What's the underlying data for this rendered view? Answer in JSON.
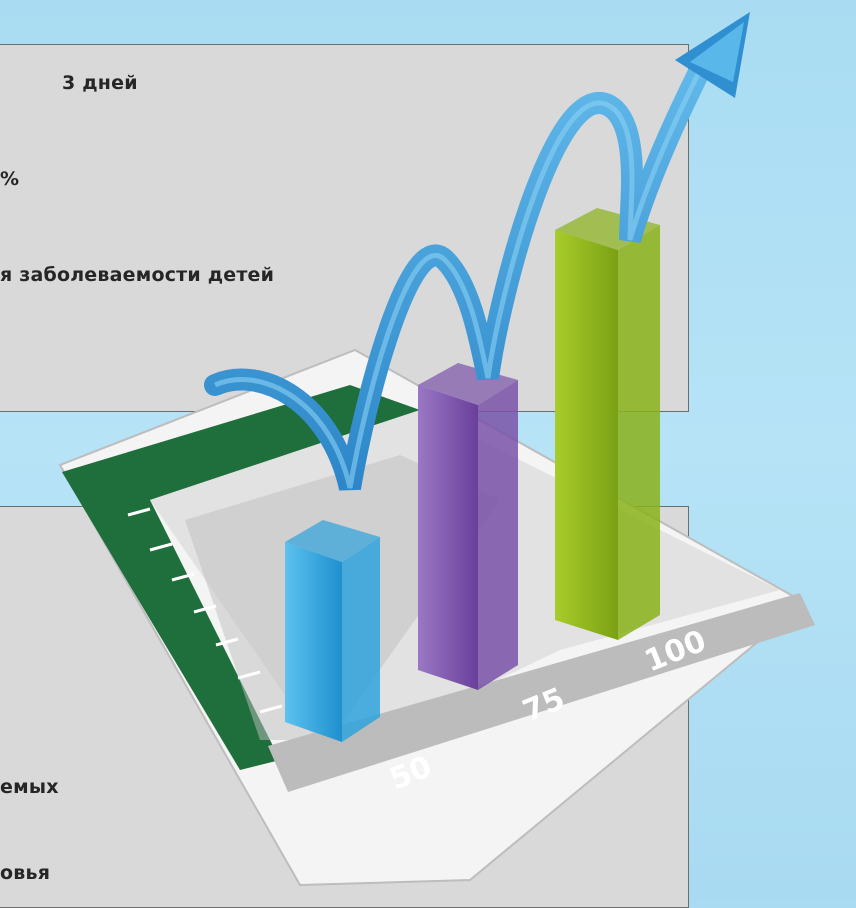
{
  "panel_top": {
    "lines": [
      "3 дней",
      "%",
      "я заболеваемости детей"
    ]
  },
  "panel_bottom": {
    "lines": [
      "емых",
      "овья"
    ]
  },
  "chart_data": {
    "type": "bar",
    "categories": [
      "50",
      "75",
      "100"
    ],
    "values": [
      50,
      75,
      100
    ],
    "tick_labels": [
      "50",
      "75",
      "100"
    ],
    "colors": [
      "#2fa3dc",
      "#7a52a8",
      "#8ab21a"
    ],
    "arrow_color": "#3d9ad6"
  }
}
